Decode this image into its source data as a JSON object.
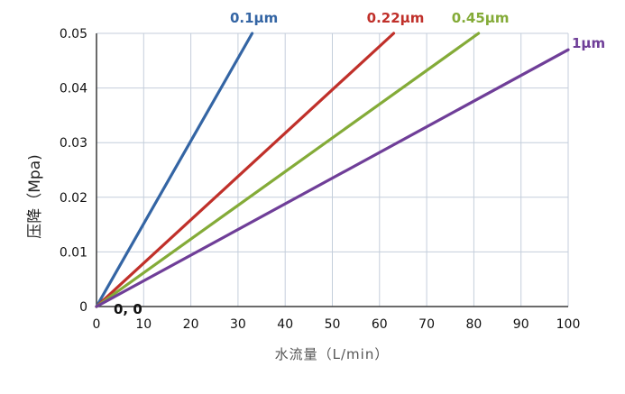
{
  "chart_data": {
    "type": "line",
    "xlabel": "水流量（L/min）",
    "ylabel": "压降（Mpa)",
    "xlim": [
      0,
      100
    ],
    "ylim": [
      0,
      0.05
    ],
    "x_ticks": [
      "0",
      "10",
      "20",
      "30",
      "40",
      "50",
      "60",
      "70",
      "80",
      "90",
      "100"
    ],
    "y_ticks": [
      "0",
      "0.01",
      "0.02",
      "0.03",
      "0.04",
      "0.05"
    ],
    "grid": true,
    "origin_annotation": "0, 0",
    "series": [
      {
        "name": "0.1µm",
        "color": "#3465a4",
        "points": [
          [
            0,
            0
          ],
          [
            33,
            0.05
          ]
        ]
      },
      {
        "name": "0.22µm",
        "color": "#c0302a",
        "points": [
          [
            0,
            0
          ],
          [
            63,
            0.05
          ]
        ]
      },
      {
        "name": "0.45µm",
        "color": "#84ab38",
        "points": [
          [
            0,
            0
          ],
          [
            81,
            0.05
          ]
        ]
      },
      {
        "name": "1µm",
        "color": "#6f3e98",
        "points": [
          [
            0,
            0
          ],
          [
            100,
            0.047
          ]
        ]
      }
    ]
  }
}
